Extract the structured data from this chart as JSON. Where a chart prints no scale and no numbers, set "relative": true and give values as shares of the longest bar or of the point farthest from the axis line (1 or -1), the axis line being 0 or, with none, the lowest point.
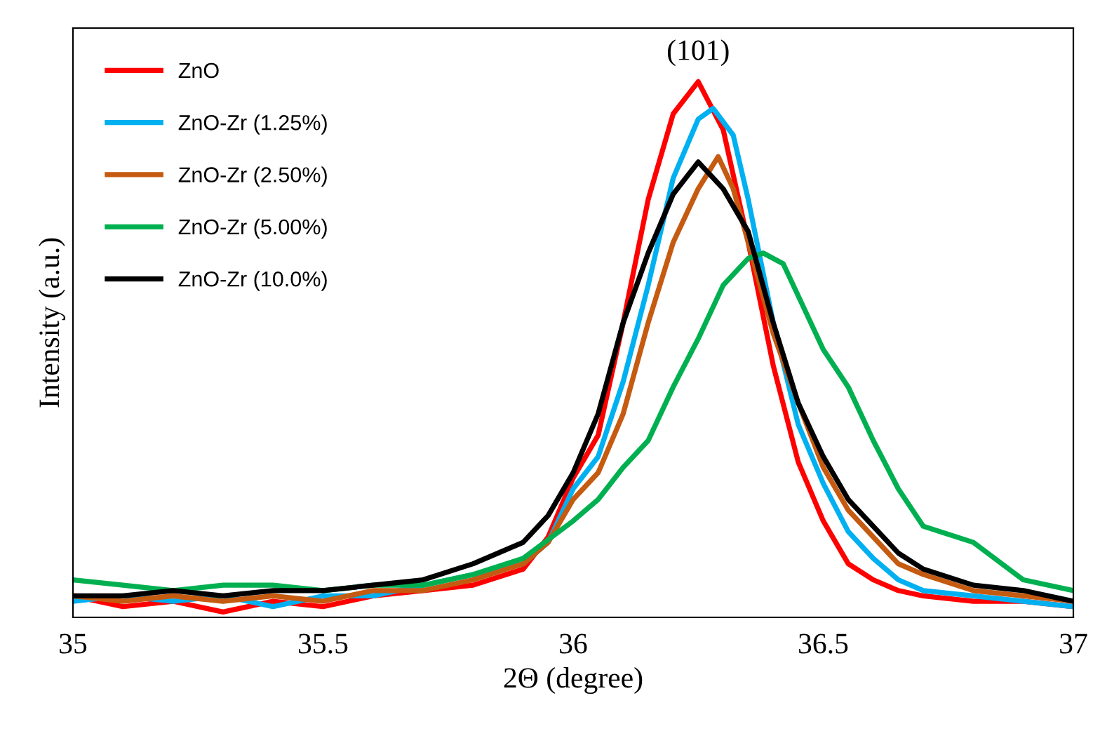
{
  "chart_data": {
    "type": "line",
    "relative": true,
    "xlabel": "2Θ (degree)",
    "ylabel": "Intensity (a.u.)",
    "xlim": [
      35,
      37
    ],
    "xticks": [
      35,
      35.5,
      36,
      36.5,
      37
    ],
    "grid": false,
    "legend": "top left",
    "marker": "none",
    "line_style": "solid",
    "annotations": [
      {
        "text": "(101)",
        "x": 36.25,
        "y": 1.0
      }
    ],
    "series": [
      {
        "name": "ZnO",
        "color": "#ff0000",
        "x": [
          35.0,
          35.1,
          35.2,
          35.3,
          35.4,
          35.5,
          35.6,
          35.7,
          35.8,
          35.9,
          35.95,
          36.0,
          36.05,
          36.1,
          36.15,
          36.2,
          36.25,
          36.3,
          36.35,
          36.4,
          36.45,
          36.5,
          36.55,
          36.6,
          36.65,
          36.7,
          36.8,
          36.9,
          37.0
        ],
        "values": [
          0.04,
          0.02,
          0.03,
          0.01,
          0.03,
          0.02,
          0.04,
          0.05,
          0.06,
          0.09,
          0.15,
          0.26,
          0.34,
          0.55,
          0.78,
          0.94,
          1.0,
          0.91,
          0.7,
          0.47,
          0.29,
          0.18,
          0.1,
          0.07,
          0.05,
          0.04,
          0.03,
          0.03,
          0.02
        ]
      },
      {
        "name": "ZnO-Zr (1.25%)",
        "color": "#00b0f0",
        "x": [
          35.0,
          35.1,
          35.2,
          35.3,
          35.4,
          35.5,
          35.6,
          35.7,
          35.8,
          35.9,
          35.95,
          36.0,
          36.05,
          36.1,
          36.15,
          36.2,
          36.25,
          36.28,
          36.32,
          36.35,
          36.4,
          36.45,
          36.5,
          36.55,
          36.6,
          36.65,
          36.7,
          36.8,
          36.9,
          37.0
        ],
        "values": [
          0.03,
          0.04,
          0.03,
          0.04,
          0.02,
          0.04,
          0.04,
          0.06,
          0.08,
          0.1,
          0.14,
          0.24,
          0.3,
          0.44,
          0.62,
          0.82,
          0.93,
          0.95,
          0.9,
          0.78,
          0.55,
          0.36,
          0.25,
          0.16,
          0.11,
          0.07,
          0.05,
          0.04,
          0.03,
          0.02
        ]
      },
      {
        "name": "ZnO-Zr (2.50%)",
        "color": "#c55a11",
        "x": [
          35.0,
          35.1,
          35.2,
          35.3,
          35.4,
          35.5,
          35.6,
          35.7,
          35.8,
          35.9,
          35.95,
          36.0,
          36.05,
          36.1,
          36.15,
          36.2,
          36.25,
          36.29,
          36.32,
          36.35,
          36.4,
          36.45,
          36.5,
          36.55,
          36.6,
          36.65,
          36.7,
          36.8,
          36.9,
          37.0
        ],
        "values": [
          0.04,
          0.03,
          0.04,
          0.03,
          0.04,
          0.03,
          0.05,
          0.05,
          0.07,
          0.1,
          0.14,
          0.22,
          0.27,
          0.38,
          0.55,
          0.7,
          0.8,
          0.86,
          0.8,
          0.7,
          0.53,
          0.4,
          0.28,
          0.2,
          0.15,
          0.1,
          0.08,
          0.05,
          0.04,
          0.03
        ]
      },
      {
        "name": "ZnO-Zr (5.00%)",
        "color": "#00b050",
        "x": [
          35.0,
          35.1,
          35.2,
          35.3,
          35.4,
          35.5,
          35.6,
          35.7,
          35.8,
          35.9,
          36.0,
          36.05,
          36.1,
          36.15,
          36.2,
          36.25,
          36.3,
          36.35,
          36.38,
          36.42,
          36.45,
          36.5,
          36.55,
          36.6,
          36.65,
          36.7,
          36.8,
          36.9,
          37.0
        ],
        "values": [
          0.07,
          0.06,
          0.05,
          0.06,
          0.06,
          0.05,
          0.06,
          0.06,
          0.08,
          0.11,
          0.18,
          0.22,
          0.28,
          0.33,
          0.43,
          0.52,
          0.62,
          0.67,
          0.68,
          0.66,
          0.6,
          0.5,
          0.43,
          0.33,
          0.24,
          0.17,
          0.14,
          0.07,
          0.05
        ]
      },
      {
        "name": "ZnO-Zr (10.0%)",
        "color": "#000000",
        "x": [
          35.0,
          35.1,
          35.2,
          35.3,
          35.4,
          35.5,
          35.6,
          35.7,
          35.8,
          35.9,
          35.95,
          36.0,
          36.05,
          36.1,
          36.15,
          36.2,
          36.25,
          36.3,
          36.35,
          36.4,
          36.45,
          36.5,
          36.55,
          36.6,
          36.65,
          36.7,
          36.8,
          36.9,
          37.0
        ],
        "values": [
          0.04,
          0.04,
          0.05,
          0.04,
          0.05,
          0.05,
          0.06,
          0.07,
          0.1,
          0.14,
          0.19,
          0.27,
          0.38,
          0.55,
          0.68,
          0.79,
          0.85,
          0.8,
          0.72,
          0.55,
          0.4,
          0.3,
          0.22,
          0.17,
          0.12,
          0.09,
          0.06,
          0.05,
          0.03
        ]
      }
    ]
  }
}
